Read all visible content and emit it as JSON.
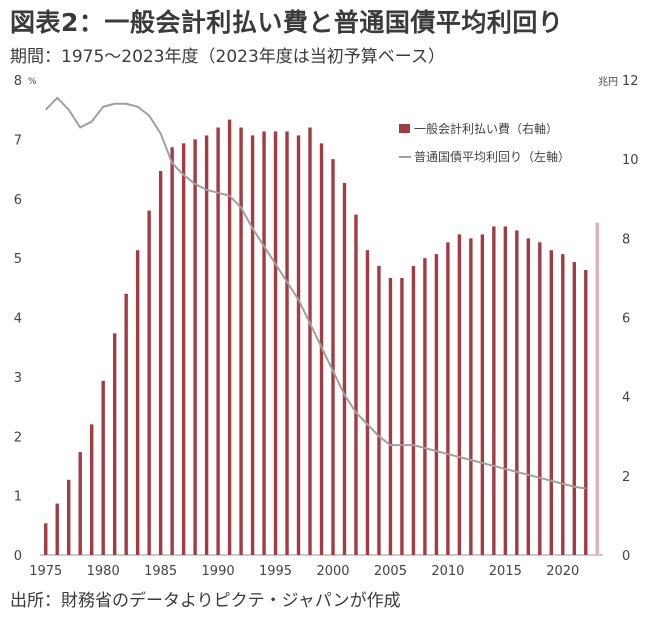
{
  "title": "図表2：一般会計利払い費と普通国債平均利回り",
  "subtitle": "期間：1975～2023年度（2023年度は当初予算ベース）",
  "source": "出所：財務省のデータよりピクテ・ジャパンが作成",
  "chart_data": {
    "type": "bar+line",
    "x": [
      1975,
      1976,
      1977,
      1978,
      1979,
      1980,
      1981,
      1982,
      1983,
      1984,
      1985,
      1986,
      1987,
      1988,
      1989,
      1990,
      1991,
      1992,
      1993,
      1994,
      1995,
      1996,
      1997,
      1998,
      1999,
      2000,
      2001,
      2002,
      2003,
      2004,
      2005,
      2006,
      2007,
      2008,
      2009,
      2010,
      2011,
      2012,
      2013,
      2014,
      2015,
      2016,
      2017,
      2018,
      2019,
      2020,
      2021,
      2022,
      2023
    ],
    "xticks": [
      1975,
      1980,
      1985,
      1990,
      1995,
      2000,
      2005,
      2010,
      2015,
      2020
    ],
    "left_axis": {
      "unit": "%",
      "ylim": [
        0,
        8
      ],
      "ticks": [
        "0",
        "1",
        "2",
        "3",
        "4",
        "5",
        "6",
        "7",
        "8"
      ]
    },
    "right_axis": {
      "unit": "兆円",
      "ylim": [
        0,
        12
      ],
      "ticks": [
        "0",
        "2",
        "4",
        "6",
        "8",
        "10",
        "12"
      ]
    },
    "series": [
      {
        "name": "一般会計利払い費（右軸）",
        "type": "bar",
        "axis": "right",
        "color": "#a33b43",
        "last_color": "#dbb4b6",
        "values": [
          0.8,
          1.3,
          1.9,
          2.6,
          3.3,
          4.4,
          5.6,
          6.6,
          7.7,
          8.7,
          9.7,
          10.3,
          10.4,
          10.5,
          10.6,
          10.8,
          11.0,
          10.8,
          10.6,
          10.7,
          10.7,
          10.7,
          10.6,
          10.8,
          10.4,
          10.0,
          9.4,
          8.6,
          7.7,
          7.3,
          7.0,
          7.0,
          7.3,
          7.5,
          7.6,
          7.9,
          8.1,
          8.0,
          8.1,
          8.3,
          8.3,
          8.2,
          8.0,
          7.9,
          7.7,
          7.6,
          7.4,
          7.2,
          8.4
        ]
      },
      {
        "name": "普通国債平均利回り（左軸）",
        "type": "line",
        "axis": "left",
        "color": "#a0a0a0",
        "values": [
          7.5,
          7.7,
          7.5,
          7.2,
          7.3,
          7.55,
          7.6,
          7.6,
          7.55,
          7.4,
          7.1,
          6.6,
          6.4,
          6.25,
          6.15,
          6.1,
          6.05,
          5.85,
          5.5,
          5.2,
          4.9,
          4.6,
          4.3,
          3.9,
          3.5,
          3.1,
          2.7,
          2.4,
          2.2,
          2.0,
          1.85,
          1.85,
          1.85,
          1.8,
          1.75,
          1.7,
          1.65,
          1.6,
          1.55,
          1.5,
          1.45,
          1.4,
          1.35,
          1.3,
          1.25,
          1.2,
          1.15,
          1.12,
          null
        ]
      }
    ],
    "legend_placement": "top-right"
  }
}
